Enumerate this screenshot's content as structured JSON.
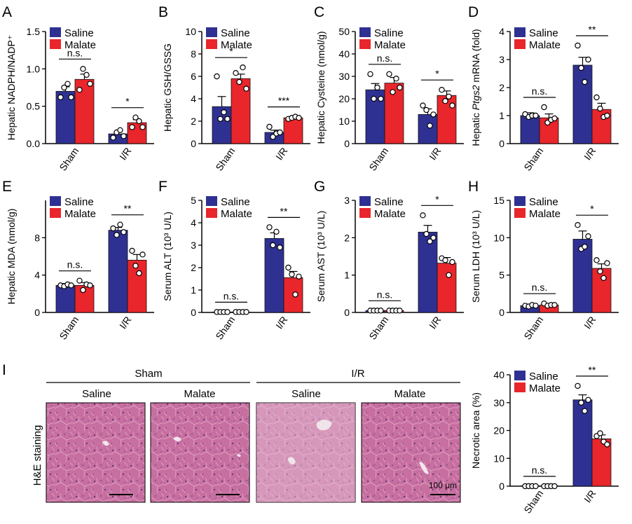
{
  "figure": {
    "legend": {
      "saline": "Saline",
      "malate": "Malate"
    },
    "colors": {
      "saline": "#2E3192",
      "malate": "#E8262B",
      "axis": "#000000",
      "bar_outline": "#111111",
      "tissue": "#C06A9A"
    }
  },
  "chart_data": [
    {
      "panel": "A",
      "type": "bar",
      "ylabel": "Hepatic NADPH/NADP⁺",
      "categories": [
        "Sham",
        "I/R"
      ],
      "ylim": [
        0,
        1.5
      ],
      "yticks": [
        0.0,
        0.5,
        1.0,
        1.5
      ],
      "ytick_labels": [
        "0.0",
        "0.5",
        "1.0",
        "1.5"
      ],
      "series": [
        {
          "name": "Saline",
          "values": [
            0.7,
            0.13
          ],
          "errors": [
            0.06,
            0.03
          ],
          "points": [
            [
              0.62,
              0.75,
              0.8,
              0.62
            ],
            [
              0.08,
              0.15,
              0.18,
              0.1
            ]
          ]
        },
        {
          "name": "Malate",
          "values": [
            0.86,
            0.28
          ],
          "errors": [
            0.07,
            0.04
          ],
          "points": [
            [
              0.72,
              1.0,
              0.92,
              0.8
            ],
            [
              0.22,
              0.35,
              0.3,
              0.22
            ]
          ]
        }
      ],
      "significance": [
        "n.s.",
        "*"
      ]
    },
    {
      "panel": "B",
      "type": "bar",
      "ylabel": "Hepatic GSH/GSSG",
      "categories": [
        "Sham",
        "I/R"
      ],
      "ylim": [
        0,
        10
      ],
      "yticks": [
        0,
        2,
        4,
        6,
        8,
        10
      ],
      "ytick_labels": [
        "0",
        "2",
        "4",
        "6",
        "8",
        "10"
      ],
      "series": [
        {
          "name": "Saline",
          "values": [
            3.3,
            1.0
          ],
          "errors": [
            0.9,
            0.2
          ],
          "points": [
            [
              6.0,
              2.2,
              2.8,
              2.2
            ],
            [
              1.5,
              0.6,
              0.9,
              1.0
            ]
          ]
        },
        {
          "name": "Malate",
          "values": [
            5.8,
            2.3
          ],
          "errors": [
            0.4,
            0.1
          ],
          "points": [
            [
              6.3,
              5.5,
              6.8,
              4.9
            ],
            [
              2.2,
              2.3,
              2.4,
              2.3
            ]
          ]
        }
      ],
      "significance": [
        "*",
        "***"
      ]
    },
    {
      "panel": "C",
      "type": "bar",
      "ylabel": "Hepatic Cysteine (nmol/g)",
      "categories": [
        "Sham",
        "I/R"
      ],
      "ylim": [
        0,
        50
      ],
      "yticks": [
        0,
        10,
        20,
        30,
        40,
        50
      ],
      "ytick_labels": [
        "0",
        "10",
        "20",
        "30",
        "40",
        "50"
      ],
      "series": [
        {
          "name": "Saline",
          "values": [
            24.0,
            13.0
          ],
          "errors": [
            2.8,
            2.5
          ],
          "points": [
            [
              31.0,
              20.0,
              25.0,
              20.0
            ],
            [
              17.0,
              15.0,
              8.0,
              13.0
            ]
          ]
        },
        {
          "name": "Malate",
          "values": [
            27.0,
            21.5
          ],
          "errors": [
            2.5,
            2.0
          ],
          "points": [
            [
              31.0,
              23.0,
              29.0,
              25.0
            ],
            [
              24.0,
              19.0,
              21.0,
              17.0
            ]
          ]
        }
      ],
      "significance": [
        "n.s.",
        "*"
      ]
    },
    {
      "panel": "D",
      "type": "bar",
      "ylabel": "Hepatic Ptgs2 mRNA (fold)",
      "ylabel_italic": "Ptgs2",
      "categories": [
        "Sham",
        "I/R"
      ],
      "ylim": [
        0,
        4
      ],
      "yticks": [
        0,
        1,
        2,
        3,
        4
      ],
      "ytick_labels": [
        "0",
        "1",
        "2",
        "3",
        "4"
      ],
      "series": [
        {
          "name": "Saline",
          "values": [
            1.0,
            2.8
          ],
          "errors": [
            0.1,
            0.28
          ],
          "points": [
            [
              1.05,
              0.95,
              1.0,
              1.0
            ],
            [
              3.5,
              2.7,
              2.2,
              3.0
            ]
          ]
        },
        {
          "name": "Malate",
          "values": [
            0.92,
            1.22
          ],
          "errors": [
            0.14,
            0.22
          ],
          "points": [
            [
              1.3,
              0.75,
              0.85,
              0.9
            ],
            [
              1.65,
              1.25,
              0.95,
              1.0
            ]
          ]
        }
      ],
      "significance": [
        "n.s.",
        "**"
      ]
    },
    {
      "panel": "E",
      "type": "bar",
      "ylabel": "Hepatic MDA (nmol/g)",
      "categories": [
        "Sham",
        "I/R"
      ],
      "ylim": [
        0,
        12
      ],
      "yticks": [
        0,
        4,
        8
      ],
      "ytick_labels": [
        "0",
        "4",
        "8"
      ],
      "series": [
        {
          "name": "Saline",
          "values": [
            2.9,
            8.8
          ],
          "errors": [
            0.2,
            0.3
          ],
          "points": [
            [
              2.9,
              2.8,
              3.0,
              2.9
            ],
            [
              9.0,
              8.3,
              9.4,
              8.6
            ]
          ]
        },
        {
          "name": "Malate",
          "values": [
            2.9,
            5.6
          ],
          "errors": [
            0.3,
            0.6
          ],
          "points": [
            [
              3.4,
              2.4,
              3.0,
              2.9
            ],
            [
              6.6,
              5.0,
              4.2,
              6.2
            ]
          ]
        }
      ],
      "significance": [
        "n.s.",
        "**"
      ]
    },
    {
      "panel": "F",
      "type": "bar",
      "ylabel": "Serum ALT (10³ U/L)",
      "categories": [
        "Sham",
        "I/R"
      ],
      "ylim": [
        0,
        5
      ],
      "yticks": [
        0,
        1,
        2,
        3,
        4,
        5
      ],
      "ytick_labels": [
        "0",
        "1",
        "2",
        "3",
        "4",
        "5"
      ],
      "series": [
        {
          "name": "Saline",
          "values": [
            0.02,
            3.3
          ],
          "errors": [
            0.01,
            0.25
          ],
          "points": [
            [
              0.02,
              0.02,
              0.02,
              0.02
            ],
            [
              3.8,
              3.0,
              3.6,
              2.9
            ]
          ]
        },
        {
          "name": "Malate",
          "values": [
            0.02,
            1.55
          ],
          "errors": [
            0.01,
            0.28
          ],
          "points": [
            [
              0.02,
              0.02,
              0.02,
              0.02
            ],
            [
              2.0,
              1.7,
              0.8,
              1.6
            ]
          ]
        }
      ],
      "significance": [
        "n.s.",
        "**"
      ]
    },
    {
      "panel": "G",
      "type": "bar",
      "ylabel": "Serum AST (10³ U/L)",
      "categories": [
        "Sham",
        "I/R"
      ],
      "ylim": [
        0,
        3
      ],
      "yticks": [
        0,
        1,
        2,
        3
      ],
      "ytick_labels": [
        "0",
        "1",
        "2",
        "3"
      ],
      "series": [
        {
          "name": "Saline",
          "values": [
            0.05,
            2.15
          ],
          "errors": [
            0.01,
            0.18
          ],
          "points": [
            [
              0.05,
              0.05,
              0.05,
              0.05
            ],
            [
              2.6,
              2.1,
              1.9,
              2.0
            ]
          ]
        },
        {
          "name": "Malate",
          "values": [
            0.05,
            1.32
          ],
          "errors": [
            0.01,
            0.15
          ],
          "points": [
            [
              0.05,
              0.05,
              0.05,
              0.05
            ],
            [
              1.45,
              1.4,
              1.0,
              1.35
            ]
          ]
        }
      ],
      "significance": [
        "n.s.",
        "*"
      ]
    },
    {
      "panel": "H",
      "type": "bar",
      "ylabel": "Serum LDH (10³ U/L)",
      "categories": [
        "Sham",
        "I/R"
      ],
      "ylim": [
        0,
        15
      ],
      "yticks": [
        0,
        5,
        10,
        15
      ],
      "ytick_labels": [
        "0",
        "5",
        "10",
        "15"
      ],
      "series": [
        {
          "name": "Saline",
          "values": [
            0.9,
            9.8
          ],
          "errors": [
            0.1,
            1.1
          ],
          "points": [
            [
              0.9,
              0.8,
              1.0,
              0.9
            ],
            [
              11.7,
              8.5,
              8.8,
              10.2
            ]
          ]
        },
        {
          "name": "Malate",
          "values": [
            1.0,
            5.9
          ],
          "errors": [
            0.2,
            0.6
          ],
          "points": [
            [
              1.2,
              0.9,
              1.0,
              1.0
            ],
            [
              7.0,
              5.5,
              4.6,
              6.6
            ]
          ]
        }
      ],
      "significance": [
        "n.s.",
        "*"
      ]
    },
    {
      "panel": "I",
      "type": "bar",
      "ylabel": "Necrotic area (%)",
      "categories": [
        "Sham",
        "I/R"
      ],
      "ylim": [
        0,
        40
      ],
      "yticks": [
        0,
        10,
        20,
        30,
        40
      ],
      "ytick_labels": [
        "0",
        "10",
        "20",
        "30",
        "40"
      ],
      "series": [
        {
          "name": "Saline",
          "values": [
            0.0,
            31.0
          ],
          "errors": [
            0.0,
            1.8
          ],
          "points": [
            [
              0,
              0,
              0,
              0
            ],
            [
              36.0,
              30.0,
              27.0,
              31.0
            ]
          ]
        },
        {
          "name": "Malate",
          "values": [
            0.0,
            17.0
          ],
          "errors": [
            0.0,
            1.4
          ],
          "points": [
            [
              0,
              0,
              0,
              0
            ],
            [
              18.0,
              19.0,
              16.0,
              15.0
            ]
          ]
        }
      ],
      "significance": [
        "n.s.",
        "**"
      ]
    }
  ],
  "histology": {
    "panel": "I",
    "side_label": "H&E staining",
    "groups": [
      "Sham",
      "I/R"
    ],
    "columns": [
      "Saline",
      "Malate",
      "Saline",
      "Malate"
    ],
    "scale_bar": "100 μm"
  }
}
